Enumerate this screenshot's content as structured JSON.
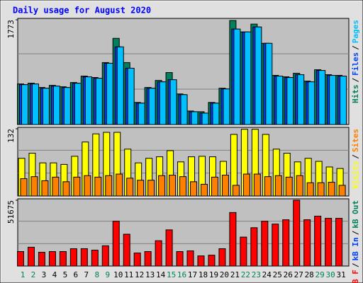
{
  "chart_data": [
    {
      "type": "bar",
      "title": "Daily usage for August 2020",
      "ylim": [
        0,
        1773
      ],
      "yticks": [
        1773
      ],
      "legend_separator": "/",
      "series": [
        {
          "name": "Hits",
          "color": "#00805c",
          "values": [
            687,
            700,
            627,
            663,
            639,
            711,
            820,
            796,
            1049,
            1459,
            1049,
            374,
            627,
            747,
            880,
            518,
            229,
            217,
            374,
            615,
            1761,
            1568,
            1700,
            1375,
            832,
            808,
            868,
            735,
            928,
            844,
            832
          ]
        },
        {
          "name": "Files",
          "color": "#0040ff",
          "values": [
            675,
            687,
            615,
            651,
            627,
            699,
            808,
            784,
            1037,
            1315,
            953,
            362,
            615,
            723,
            759,
            506,
            217,
            193,
            362,
            603,
            1616,
            1568,
            1652,
            1375,
            820,
            796,
            844,
            723,
            916,
            832,
            820
          ]
        },
        {
          "name": "Pages",
          "color": "#00c0ff",
          "values": [
            675,
            687,
            615,
            651,
            627,
            699,
            808,
            784,
            1037,
            1315,
            953,
            362,
            615,
            723,
            759,
            506,
            217,
            193,
            362,
            603,
            1616,
            1568,
            1652,
            1375,
            820,
            796,
            844,
            723,
            916,
            832,
            820
          ]
        }
      ]
    },
    {
      "type": "bar",
      "ylim": [
        0,
        132
      ],
      "yticks": [
        132
      ],
      "legend_separator": "/",
      "series": [
        {
          "name": "Visits",
          "color": "#ffff00",
          "values": [
            74,
            84,
            65,
            65,
            62,
            78,
            106,
            122,
            125,
            125,
            92,
            65,
            74,
            77,
            89,
            67,
            77,
            78,
            77,
            68,
            121,
            131,
            131,
            121,
            92,
            84,
            67,
            74,
            68,
            57,
            54
          ]
        },
        {
          "name": "Sites",
          "color": "#ff8000",
          "values": [
            34,
            38,
            30,
            37,
            28,
            37,
            40,
            37,
            40,
            43,
            35,
            31,
            31,
            40,
            41,
            38,
            28,
            23,
            37,
            41,
            21,
            43,
            43,
            38,
            40,
            37,
            40,
            26,
            26,
            27,
            21
          ]
        }
      ]
    },
    {
      "type": "bar",
      "ylim": [
        0,
        51675
      ],
      "yticks": [
        51675
      ],
      "legend_separator": "/",
      "categories": [
        "1",
        "2",
        "3",
        "4",
        "5",
        "6",
        "7",
        "8",
        "9",
        "10",
        "11",
        "12",
        "13",
        "14",
        "15",
        "16",
        "17",
        "18",
        "19",
        "20",
        "21",
        "22",
        "23",
        "24",
        "25",
        "26",
        "27",
        "28",
        "29",
        "30",
        "31"
      ],
      "weekends": [
        0,
        1,
        7,
        8,
        14,
        15,
        21,
        22,
        28,
        29
      ],
      "weekend_color": "#00805c",
      "series": [
        {
          "name": "kB F",
          "color": "#ff0000",
          "values": [
            11358,
            14765,
            10790,
            11358,
            11358,
            13630,
            13630,
            12494,
            15901,
            35210,
            24988,
            10222,
            11358,
            19877,
            28395,
            11358,
            11926,
            7951,
            8519,
            13630,
            42025,
            22716,
            30098,
            35210,
            32938,
            36346,
            51675,
            36346,
            39184,
            37482,
            37482
          ]
        },
        {
          "name": "kB In",
          "color": "#0040ff",
          "values": [
            null,
            null,
            null,
            null,
            null,
            null,
            null,
            null,
            null,
            null,
            null,
            null,
            null,
            null,
            null,
            null,
            null,
            null,
            null,
            null,
            null,
            null,
            null,
            null,
            null,
            null,
            null,
            null,
            null,
            null,
            null
          ]
        },
        {
          "name": "kB Out",
          "color": "#00805c",
          "values": [
            null,
            null,
            null,
            null,
            null,
            null,
            null,
            null,
            null,
            null,
            null,
            null,
            null,
            null,
            null,
            null,
            null,
            null,
            null,
            null,
            null,
            null,
            null,
            null,
            null,
            null,
            null,
            null,
            null,
            null,
            null
          ]
        }
      ]
    }
  ]
}
